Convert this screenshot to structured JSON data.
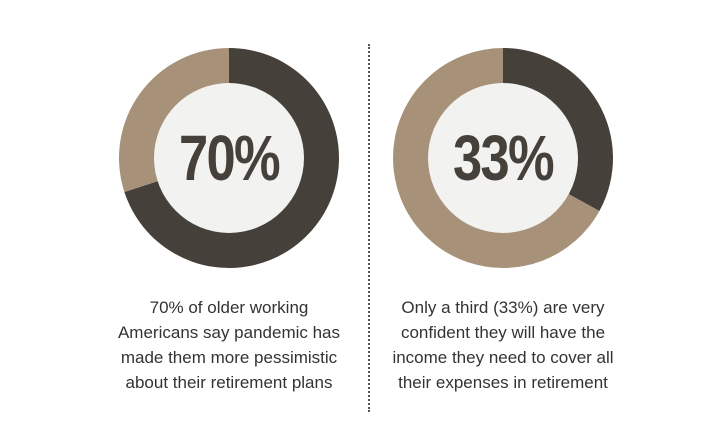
{
  "colors": {
    "primary": "#46403a",
    "secondary": "#a79279",
    "center": "#f2f2f0"
  },
  "chart_data": [
    {
      "type": "pie",
      "labels": [
        "",
        ""
      ],
      "values": [
        70,
        30
      ],
      "center_label": "70%",
      "caption_lines": [
        "70% of older working",
        "Americans say pandemic has",
        "made them more pessimistic",
        "about their retirement plans"
      ]
    },
    {
      "type": "pie",
      "labels": [
        "",
        ""
      ],
      "values": [
        33,
        67
      ],
      "center_label": "33%",
      "caption_lines": [
        "Only a third (33%) are very",
        "confident they will have the",
        "income they need to cover all",
        "their expenses in retirement"
      ]
    }
  ]
}
